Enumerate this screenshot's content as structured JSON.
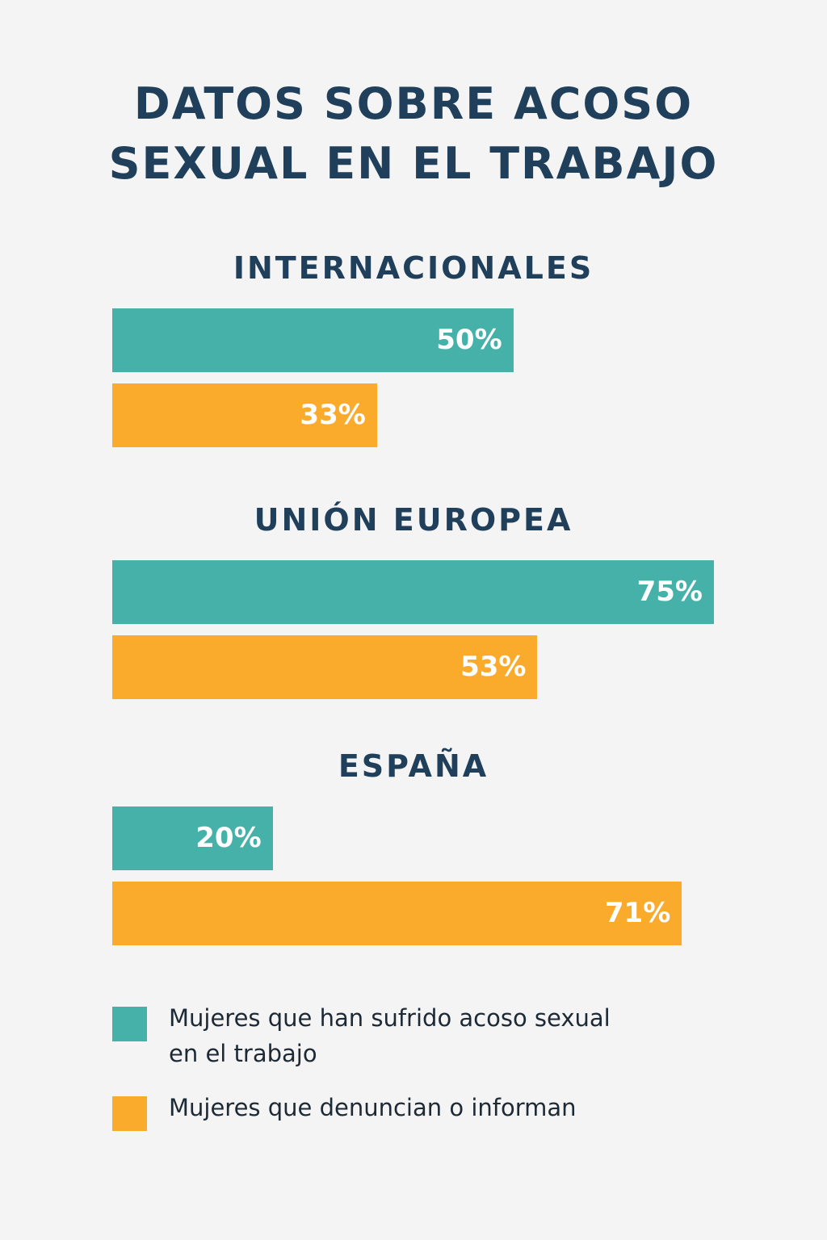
{
  "chart_data": {
    "type": "bar",
    "title": "DATOS SOBRE ACOSO SEXUAL EN EL TRABAJO",
    "categories": [
      "INTERNACIONALES",
      "UNIÓN EUROPEA",
      "ESPAÑA"
    ],
    "series": [
      {
        "name": "Mujeres que han sufrido acoso sexual en el trabajo",
        "color": "#46b1a9",
        "values": [
          50,
          75,
          20
        ],
        "value_labels": [
          "50%",
          "75%",
          "20%"
        ]
      },
      {
        "name": "Mujeres que denuncian o informan",
        "color": "#fbab2b",
        "values": [
          33,
          53,
          71
        ],
        "value_labels": [
          "33%",
          "53%",
          "71%"
        ]
      }
    ]
  }
}
